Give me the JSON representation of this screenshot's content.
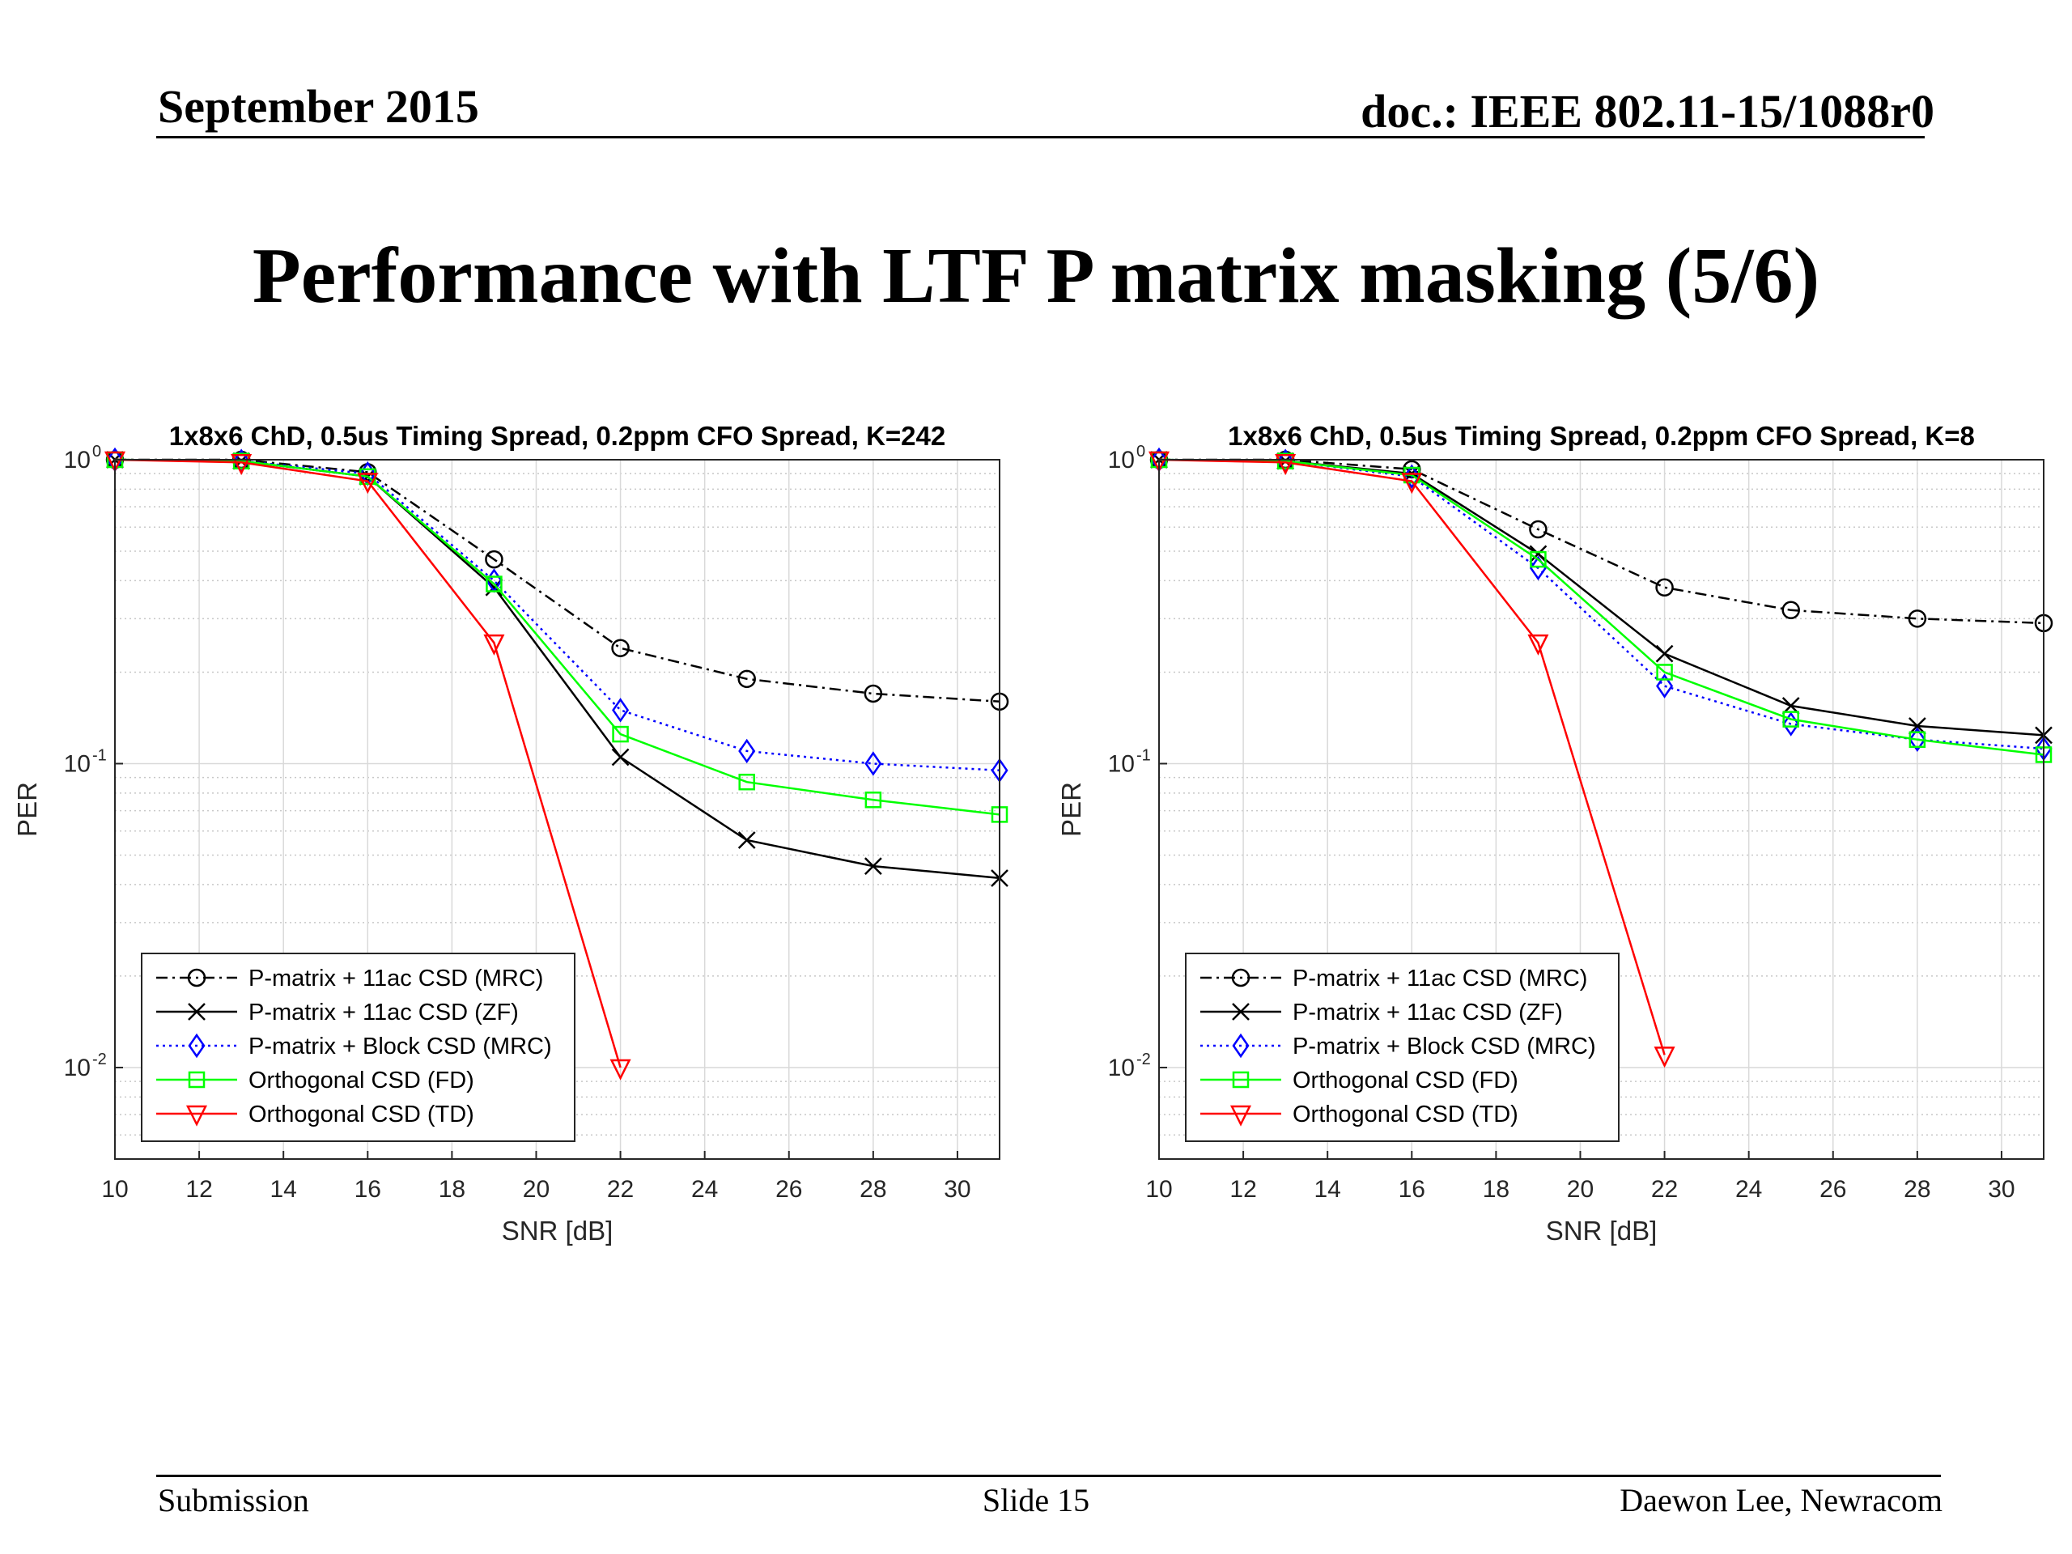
{
  "header": {
    "date": "September 2015",
    "doc": "doc.: IEEE 802.11-15/1088r0"
  },
  "slide_title": "Performance with LTF P matrix masking (5/6)",
  "footer": {
    "left": "Submission",
    "center": "Slide 15",
    "right": "Daewon Lee, Newracom"
  },
  "series_styles": [
    {
      "color": "#000000",
      "dash": "14 6 3 6",
      "marker": "circle"
    },
    {
      "color": "#000000",
      "dash": "",
      "marker": "x"
    },
    {
      "color": "#0000ff",
      "dash": "3 5",
      "marker": "diamond"
    },
    {
      "color": "#00ff00",
      "dash": "",
      "marker": "square"
    },
    {
      "color": "#ff0000",
      "dash": "",
      "marker": "triangle-down"
    }
  ],
  "chart_data": [
    {
      "type": "line",
      "title": "1x8x6 ChD, 0.5us Timing Spread, 0.2ppm CFO Spread, K=242",
      "xlabel": "SNR [dB]",
      "ylabel": "PER",
      "xlim": [
        10,
        31
      ],
      "ylim": [
        0.005,
        1
      ],
      "yscale": "log",
      "grid": true,
      "legend_position": "bottom-left",
      "x_ticks": [
        "10",
        "12",
        "14",
        "16",
        "18",
        "20",
        "22",
        "24",
        "26",
        "28",
        "30"
      ],
      "y_ticks": [
        {
          "base": "10",
          "exp": "0"
        },
        {
          "base": "10",
          "exp": "-1"
        },
        {
          "base": "10",
          "exp": "-2"
        }
      ],
      "series": [
        {
          "name": "P-matrix + 11ac CSD (MRC)",
          "x": [
            10,
            13,
            16,
            19,
            22,
            25,
            28,
            31
          ],
          "y": [
            1.0,
            1.0,
            0.91,
            0.47,
            0.24,
            0.19,
            0.17,
            0.16
          ]
        },
        {
          "name": "P-matrix + 11ac CSD (ZF)",
          "x": [
            10,
            13,
            16,
            19,
            22,
            25,
            28,
            31
          ],
          "y": [
            1.0,
            0.99,
            0.88,
            0.38,
            0.105,
            0.056,
            0.046,
            0.042
          ]
        },
        {
          "name": "P-matrix + Block CSD (MRC)",
          "x": [
            10,
            13,
            16,
            19,
            22,
            25,
            28,
            31
          ],
          "y": [
            1.0,
            0.99,
            0.9,
            0.4,
            0.15,
            0.11,
            0.1,
            0.095
          ]
        },
        {
          "name": "Orthogonal CSD (FD)",
          "x": [
            10,
            13,
            16,
            19,
            22,
            25,
            28,
            31
          ],
          "y": [
            1.0,
            0.99,
            0.88,
            0.39,
            0.125,
            0.087,
            0.076,
            0.068
          ]
        },
        {
          "name": "Orthogonal CSD (TD)",
          "x": [
            10,
            13,
            16,
            19,
            22
          ],
          "y": [
            1.0,
            0.98,
            0.85,
            0.25,
            0.01
          ]
        }
      ]
    },
    {
      "type": "line",
      "title": "1x8x6 ChD, 0.5us Timing Spread, 0.2ppm CFO Spread, K=8",
      "xlabel": "SNR [dB]",
      "ylabel": "PER",
      "xlim": [
        10,
        31
      ],
      "ylim": [
        0.005,
        1
      ],
      "yscale": "log",
      "grid": true,
      "legend_position": "bottom-left",
      "x_ticks": [
        "10",
        "12",
        "14",
        "16",
        "18",
        "20",
        "22",
        "24",
        "26",
        "28",
        "30"
      ],
      "y_ticks": [
        {
          "base": "10",
          "exp": "0"
        },
        {
          "base": "10",
          "exp": "-1"
        },
        {
          "base": "10",
          "exp": "-2"
        }
      ],
      "series": [
        {
          "name": "P-matrix + 11ac CSD (MRC)",
          "x": [
            10,
            13,
            16,
            19,
            22,
            25,
            28,
            31
          ],
          "y": [
            1.0,
            1.0,
            0.93,
            0.59,
            0.38,
            0.32,
            0.3,
            0.29
          ]
        },
        {
          "name": "P-matrix + 11ac CSD (ZF)",
          "x": [
            10,
            13,
            16,
            19,
            22,
            25,
            28,
            31
          ],
          "y": [
            1.0,
            0.99,
            0.9,
            0.49,
            0.23,
            0.155,
            0.133,
            0.124
          ]
        },
        {
          "name": "P-matrix + Block CSD (MRC)",
          "x": [
            10,
            13,
            16,
            19,
            22,
            25,
            28,
            31
          ],
          "y": [
            1.0,
            0.99,
            0.88,
            0.44,
            0.18,
            0.135,
            0.12,
            0.112
          ]
        },
        {
          "name": "Orthogonal CSD (FD)",
          "x": [
            10,
            13,
            16,
            19,
            22,
            25,
            28,
            31
          ],
          "y": [
            1.0,
            0.99,
            0.89,
            0.47,
            0.2,
            0.14,
            0.12,
            0.107
          ]
        },
        {
          "name": "Orthogonal CSD (TD)",
          "x": [
            10,
            13,
            16,
            19,
            22
          ],
          "y": [
            1.0,
            0.98,
            0.85,
            0.25,
            0.011
          ]
        }
      ]
    }
  ]
}
